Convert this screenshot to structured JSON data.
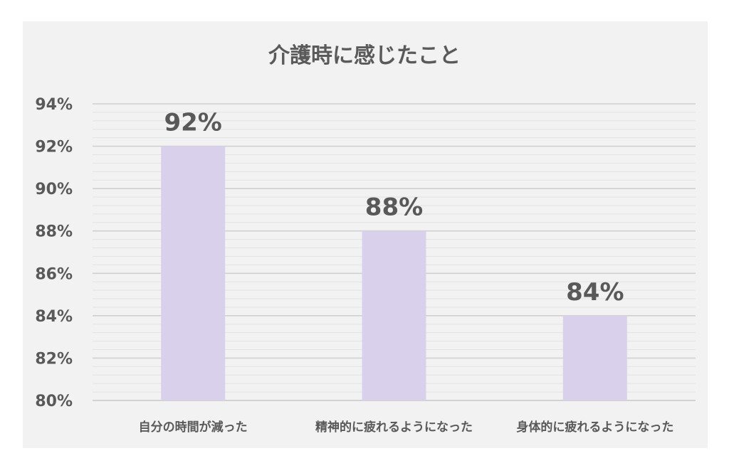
{
  "chart_data": {
    "type": "bar",
    "title": "介護時に感じたこと",
    "categories": [
      "自分の時間が減った",
      "精神的に疲れるようになった",
      "身体的に疲れるようになった"
    ],
    "values": [
      92,
      88,
      84
    ],
    "data_labels": [
      "92%",
      "88%",
      "84%"
    ],
    "ylim": [
      80,
      94
    ],
    "yticks": [
      80,
      82,
      84,
      86,
      88,
      90,
      92,
      94
    ],
    "ytick_labels": [
      "80%",
      "82%",
      "84%",
      "86%",
      "88%",
      "90%",
      "92%",
      "94%"
    ],
    "xlabel": "",
    "ylabel": "",
    "grid": true,
    "legend": "none",
    "bar_color": "#d9d1ec"
  }
}
